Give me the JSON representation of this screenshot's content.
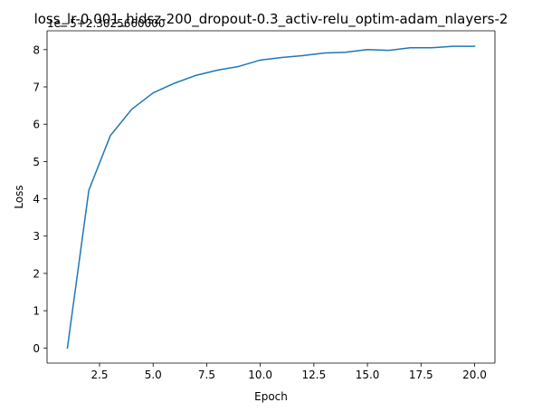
{
  "chart_data": {
    "type": "line",
    "title": "loss_lr-0.001_hidsz-200_dropout-0.3_activ-relu_optim-adam_nlayers-2",
    "offset_text": "1e−5+2.3025660000",
    "xlabel": "Epoch",
    "ylabel": "Loss",
    "xlim": [
      0.05,
      20.95
    ],
    "ylim": [
      -0.405,
      8.505
    ],
    "xticks": [
      2.5,
      5.0,
      7.5,
      10.0,
      12.5,
      15.0,
      17.5,
      20.0
    ],
    "xtick_labels": [
      "2.5",
      "5.0",
      "7.5",
      "10.0",
      "12.5",
      "15.0",
      "17.5",
      "20.0"
    ],
    "yticks": [
      0,
      1,
      2,
      3,
      4,
      5,
      6,
      7,
      8
    ],
    "ytick_labels": [
      "0",
      "1",
      "2",
      "3",
      "4",
      "5",
      "6",
      "7",
      "8"
    ],
    "grid": false,
    "series": [
      {
        "color": "#1f77b4",
        "x": [
          1,
          2,
          3,
          4,
          5,
          6,
          7,
          8,
          9,
          10,
          11,
          12,
          13,
          14,
          15,
          16,
          17,
          18,
          19,
          20
        ],
        "values": [
          0.0,
          4.23,
          5.69,
          6.4,
          6.84,
          7.1,
          7.31,
          7.45,
          7.55,
          7.72,
          7.79,
          7.84,
          7.91,
          7.93,
          8.0,
          7.98,
          8.05,
          8.05,
          8.09,
          8.09
        ]
      }
    ]
  }
}
